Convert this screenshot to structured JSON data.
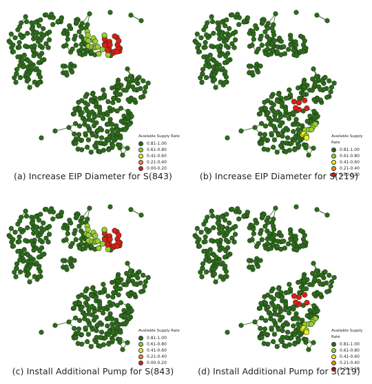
{
  "panels": [
    {
      "caption": "(a) Increase EIP Diameter for S(843)",
      "scenario": "a"
    },
    {
      "caption": "(b) Increase EIP Diameter for S(219)",
      "scenario": "b"
    },
    {
      "caption": "(c) Install Additional Pump for S(843)",
      "scenario": "c"
    },
    {
      "caption": "(d) Install Additional Pump for S(219)",
      "scenario": "d"
    }
  ],
  "legend": {
    "title": "Available Supply Rate",
    "items": [
      {
        "label": "0.81-1.00",
        "color": "#2e6b1e"
      },
      {
        "label": "0.61-0.80",
        "color": "#9acd32"
      },
      {
        "label": "0.41-0.60",
        "color": "#f0f01e"
      },
      {
        "label": "0.21-0.40",
        "color": "#f08a1e"
      },
      {
        "label": "0.00-0.20",
        "color": "#e41a1a"
      }
    ]
  },
  "colors": {
    "pipe": "#4f7d3f",
    "node_outline": "#1f3d14"
  }
}
